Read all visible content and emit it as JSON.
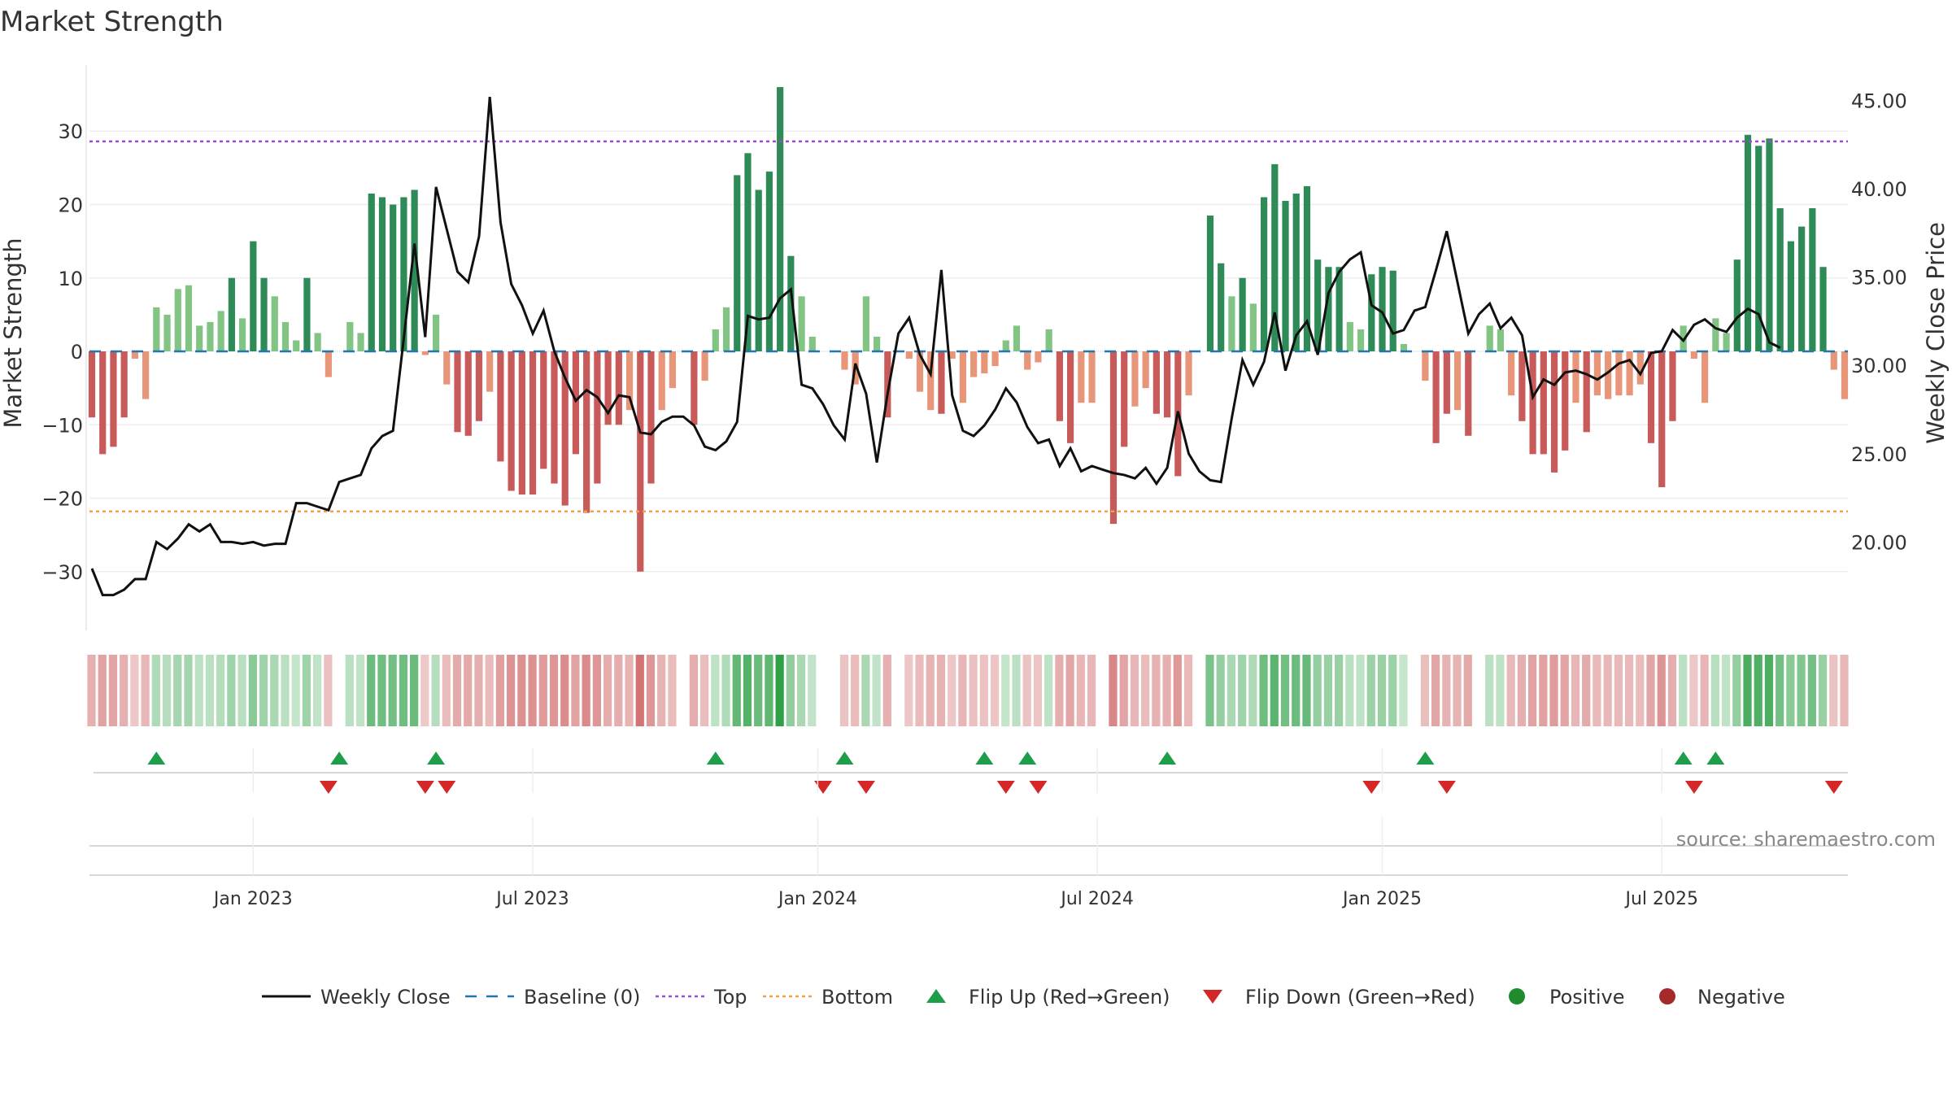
{
  "chart_data": {
    "type": "bar",
    "title": "Market Strength",
    "ylabel_left": "Market Strength",
    "ylabel_right": "Weekly Close Price",
    "source": "source: sharemaestro.com",
    "left_ylim": [
      -38,
      39
    ],
    "right_ylim": [
      15.0,
      47.0
    ],
    "left_ticks": [
      30,
      20,
      10,
      0,
      -10,
      -20,
      -30
    ],
    "left_tick_labels": [
      "30",
      "20",
      "10",
      "0",
      "−10",
      "−20",
      "−30"
    ],
    "right_ticks": [
      45,
      40,
      35,
      30,
      25,
      20
    ],
    "right_tick_labels": [
      "45.00",
      "40.00",
      "35.00",
      "30.00",
      "25.00",
      "20.00"
    ],
    "top_level": 28.6,
    "bottom_level": -21.8,
    "baseline": 0,
    "x_ticks": [
      {
        "index": 15,
        "label": "Jan 2023"
      },
      {
        "index": 41,
        "label": "Jul 2023"
      },
      {
        "index": 67.5,
        "label": "Jan 2024"
      },
      {
        "index": 93.5,
        "label": "Jul 2024"
      },
      {
        "index": 120,
        "label": "Jan 2025"
      },
      {
        "index": 146,
        "label": "Jul 2025"
      }
    ],
    "strength": [
      -9,
      -14,
      -13,
      -9,
      -1,
      -6.5,
      6,
      5,
      8.5,
      9,
      3.5,
      4,
      5.5,
      10,
      4.5,
      15,
      10,
      7.5,
      4,
      1.5,
      10,
      2.5,
      -3.5,
      0,
      4,
      2.5,
      21.5,
      21,
      20,
      21,
      22,
      -0.5,
      5,
      -4.5,
      -11,
      -11.5,
      -9.5,
      -5.5,
      -15,
      -19,
      -19.5,
      -19.5,
      -16,
      -18,
      -21,
      -14,
      -22,
      -18,
      -10,
      -10,
      -8,
      -30,
      -18,
      -8,
      -5,
      0,
      -10,
      -4,
      3,
      6,
      24,
      27,
      22,
      24.5,
      36,
      13,
      7.5,
      2,
      0,
      0,
      -2.5,
      -4.5,
      7.5,
      2,
      -9,
      0,
      -1,
      -5.5,
      -8,
      -8.5,
      -1,
      -7,
      -3.5,
      -3,
      -2,
      1.5,
      3.5,
      -2.5,
      -1.5,
      3,
      -9.5,
      -12.5,
      -7,
      -7,
      0,
      -23.5,
      -13,
      -7.5,
      -5,
      -8.5,
      -9,
      -17,
      -6,
      0,
      18.5,
      12,
      7.5,
      10,
      6.5,
      21,
      25.5,
      20.5,
      21.5,
      22.5,
      12.5,
      11.5,
      11.5,
      4,
      3,
      10.5,
      11.5,
      11,
      1,
      0,
      -4,
      -12.5,
      -8.5,
      -8,
      -11.5,
      0,
      3.5,
      3,
      -6,
      -9.5,
      -14,
      -14,
      -16.5,
      -13.5,
      -7,
      -11,
      -6,
      -6.5,
      -6,
      -6,
      -4.5,
      -12.5,
      -18.5,
      -9.5,
      3.5,
      -1,
      -7,
      4.5,
      2.5,
      12.5,
      29.5,
      28,
      29,
      19.5,
      15,
      17,
      19.5,
      11.5,
      -2.5,
      -6.5
    ],
    "weekly_close": [
      18.5,
      17,
      17,
      17.3,
      17.9,
      17.9,
      20,
      19.6,
      20.2,
      21,
      20.6,
      21,
      20,
      20,
      19.9,
      20,
      19.8,
      19.9,
      19.9,
      22.2,
      22.2,
      22,
      21.8,
      23.4,
      23.6,
      23.8,
      25.3,
      26,
      26.3,
      31.5,
      36.9,
      31.6,
      40.1,
      37.7,
      35.3,
      34.7,
      37.3,
      45.2,
      38.1,
      34.6,
      33.4,
      31.8,
      33.1,
      30.8,
      29.3,
      28,
      28.6,
      28.2,
      27.3,
      28.3,
      28.2,
      26.2,
      26.1,
      26.8,
      27.1,
      27.1,
      26.6,
      25.4,
      25.2,
      25.7,
      26.8,
      32.8,
      32.6,
      32.7,
      33.8,
      34.3,
      28.9,
      28.7,
      27.8,
      26.6,
      25.8,
      30.1,
      28.4,
      24.5,
      28.4,
      31.8,
      32.7,
      30.6,
      29.5,
      35.4,
      28.3,
      26.3,
      26,
      26.6,
      27.5,
      28.7,
      27.9,
      26.5,
      25.6,
      25.8,
      24.3,
      25.3,
      24,
      24.3,
      24.1,
      23.9,
      23.8,
      23.6,
      24.2,
      23.3,
      24.2,
      27.4,
      25,
      24,
      23.5,
      23.4,
      27,
      30.3,
      28.9,
      30.2,
      33,
      29.7,
      31.7,
      32.5,
      30.6,
      34.1,
      35.3,
      36,
      36.4,
      33.4,
      33,
      31.8,
      32,
      33.1,
      33.3,
      35.4,
      37.6,
      34.7,
      31.8,
      32.9,
      33.5,
      32.1,
      32.7,
      31.7,
      28.2,
      29.2,
      28.9,
      29.6,
      29.7,
      29.5,
      29.2,
      29.6,
      30.1,
      30.3,
      29.5,
      30.7,
      30.8,
      32,
      31.4,
      32.3,
      32.6,
      32.1,
      31.9,
      32.7,
      33.2,
      32.9,
      31.3,
      31
    ]
  },
  "markers": {
    "flip_up": [
      6,
      23,
      32,
      58,
      70,
      83,
      87,
      100,
      124,
      148,
      151
    ],
    "flip_down": [
      22,
      31,
      33,
      68,
      72,
      85,
      88,
      119,
      126,
      149,
      162
    ]
  },
  "legend": [
    {
      "key": "weekly_close",
      "label": "Weekly Close"
    },
    {
      "key": "baseline",
      "label": "Baseline (0)"
    },
    {
      "key": "top",
      "label": "Top"
    },
    {
      "key": "bottom",
      "label": "Bottom"
    },
    {
      "key": "flip_up",
      "label": "Flip Up (Red→Green)"
    },
    {
      "key": "flip_down",
      "label": "Flip Down (Green→Red)"
    },
    {
      "key": "positive",
      "label": "Positive"
    },
    {
      "key": "negative",
      "label": "Negative"
    }
  ],
  "colors": {
    "pos_strong": "#2e8b57",
    "pos_weak": "#82c484",
    "neg_strong": "#c85a5a",
    "neg_weak": "#e8967a",
    "line": "#111111",
    "baseline": "#1f77b4",
    "top": "#9b4dca",
    "bottom": "#f0a050",
    "flip_up": "#1e9e4a",
    "flip_down": "#d62728",
    "positive": "#1f8b2c",
    "negative": "#a52a2a"
  }
}
